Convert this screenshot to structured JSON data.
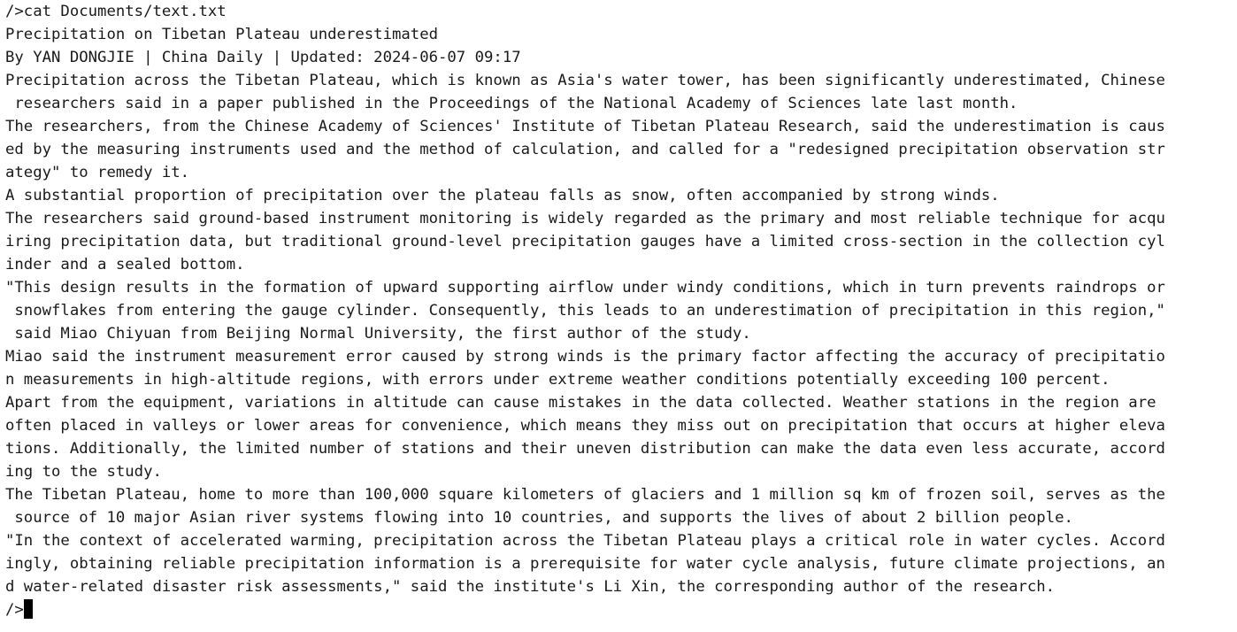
{
  "terminal": {
    "command_line": "/>cat Documents/text.txt",
    "prompt": "/>",
    "output_lines": [
      "Precipitation on Tibetan Plateau underestimated",
      "By YAN DONGJIE | China Daily | Updated: 2024-06-07 09:17",
      "Precipitation across the Tibetan Plateau, which is known as Asia's water tower, has been significantly underestimated, Chinese",
      " researchers said in a paper published in the Proceedings of the National Academy of Sciences late last month.",
      "The researchers, from the Chinese Academy of Sciences' Institute of Tibetan Plateau Research, said the underestimation is caus",
      "ed by the measuring instruments used and the method of calculation, and called for a \"redesigned precipitation observation str",
      "ategy\" to remedy it.",
      "A substantial proportion of precipitation over the plateau falls as snow, often accompanied by strong winds.",
      "The researchers said ground-based instrument monitoring is widely regarded as the primary and most reliable technique for acqu",
      "iring precipitation data, but traditional ground-level precipitation gauges have a limited cross-section in the collection cyl",
      "inder and a sealed bottom.",
      "\"This design results in the formation of upward supporting airflow under windy conditions, which in turn prevents raindrops or",
      " snowflakes from entering the gauge cylinder. Consequently, this leads to an underestimation of precipitation in this region,\"",
      " said Miao Chiyuan from Beijing Normal University, the first author of the study.",
      "Miao said the instrument measurement error caused by strong winds is the primary factor affecting the accuracy of precipitatio",
      "n measurements in high-altitude regions, with errors under extreme weather conditions potentially exceeding 100 percent.",
      "Apart from the equipment, variations in altitude can cause mistakes in the data collected. Weather stations in the region are",
      "often placed in valleys or lower areas for convenience, which means they miss out on precipitation that occurs at higher eleva",
      "tions. Additionally, the limited number of stations and their uneven distribution can make the data even less accurate, accord",
      "ing to the study.",
      "The Tibetan Plateau, home to more than 100,000 square kilometers of glaciers and 1 million sq km of frozen soil, serves as the",
      " source of 10 major Asian river systems flowing into 10 countries, and supports the lives of about 2 billion people.",
      "\"In the context of accelerated warming, precipitation across the Tibetan Plateau plays a critical role in water cycles. Accord",
      "ingly, obtaining reliable precipitation information is a prerequisite for water cycle analysis, future climate projections, an",
      "d water-related disaster risk assessments,\" said the institute's Li Xin, the corresponding author of the research."
    ]
  }
}
